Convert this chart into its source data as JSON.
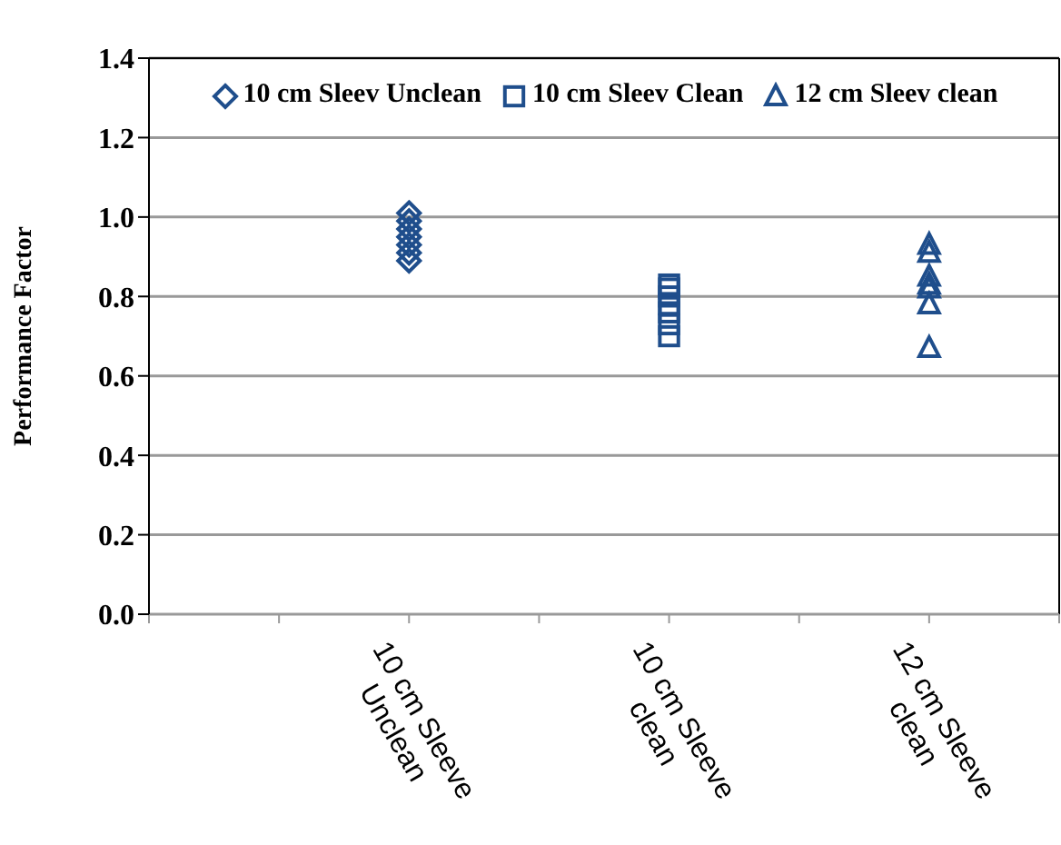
{
  "chart_data": {
    "type": "scatter",
    "ylabel": "Performance  Factor",
    "categories": [
      "10 cm Sleeve Unclean",
      "10 cm Sleeve clean",
      "12 cm Sleeve clean"
    ],
    "ylim": [
      0,
      1.4
    ],
    "yticks": [
      {
        "value": 0,
        "label": "0.0"
      },
      {
        "value": 0.2,
        "label": "0.2"
      },
      {
        "value": 0.4,
        "label": "0.4"
      },
      {
        "value": 0.6,
        "label": "0.6"
      },
      {
        "value": 0.8,
        "label": "0.8"
      },
      {
        "value": 1,
        "label": "1.0"
      },
      {
        "value": 1.2,
        "label": "1.2"
      },
      {
        "value": 1.4,
        "label": "1.4"
      }
    ],
    "grid": "y",
    "legend": "top",
    "series": [
      {
        "name": "10 cm Sleev Unclean",
        "color": "#1f4e8c",
        "marker": "diamond",
        "x": [
          "10 cm Sleeve Unclean",
          "10 cm Sleeve Unclean",
          "10 cm Sleeve Unclean",
          "10 cm Sleeve Unclean",
          "10 cm Sleeve Unclean",
          "10 cm Sleeve Unclean",
          "10 cm Sleeve Unclean"
        ],
        "values": [
          1.01,
          0.99,
          0.97,
          0.95,
          0.93,
          0.91,
          0.89
        ]
      },
      {
        "name": "10 cm Sleev Clean",
        "color": "#1f4e8c",
        "marker": "square",
        "x": [
          "10 cm Sleeve clean",
          "10 cm Sleeve clean",
          "10 cm Sleeve clean",
          "10 cm Sleeve clean",
          "10 cm Sleeve clean",
          "10 cm Sleeve clean",
          "10 cm Sleeve clean"
        ],
        "values": [
          0.83,
          0.82,
          0.8,
          0.78,
          0.76,
          0.73,
          0.7
        ]
      },
      {
        "name": "12 cm Sleev clean",
        "color": "#1f4e8c",
        "marker": "triangle",
        "x": [
          "12 cm Sleeve clean",
          "12 cm Sleeve clean",
          "12 cm Sleeve clean",
          "12 cm Sleeve clean",
          "12 cm Sleeve clean",
          "12 cm Sleeve clean",
          "12 cm Sleeve clean"
        ],
        "values": [
          0.93,
          0.91,
          0.85,
          0.83,
          0.82,
          0.78,
          0.67
        ]
      }
    ]
  }
}
